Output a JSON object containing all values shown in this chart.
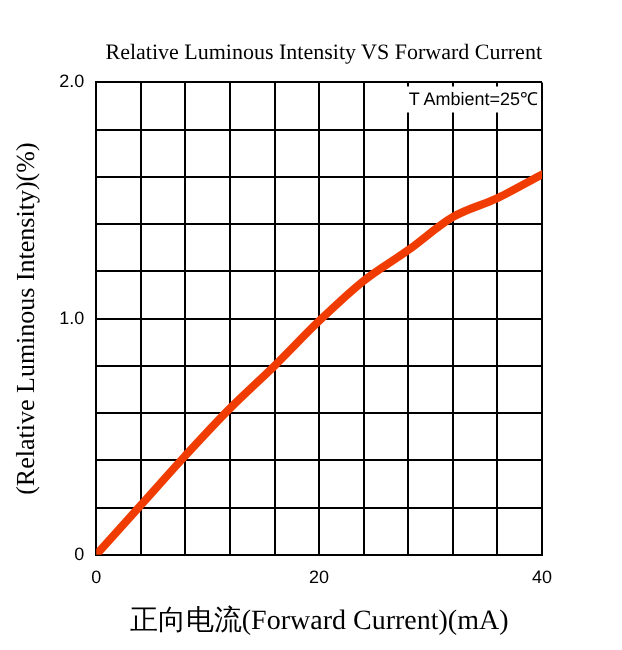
{
  "chart_data": {
    "type": "line",
    "title": "Relative Luminous Intensity VS Forward Current",
    "xlabel": "正向电流(Forward Current)(mA)",
    "ylabel": "(Relative Luminous Intensity)(%)",
    "x": [
      0,
      4,
      8,
      12,
      16,
      20,
      24,
      28,
      32,
      36,
      40
    ],
    "series": [
      {
        "color": "#f03c00",
        "values": [
          0,
          0.21,
          0.42,
          0.62,
          0.8,
          0.99,
          1.16,
          1.29,
          1.43,
          1.51,
          1.61
        ]
      }
    ],
    "xlim": [
      0,
      40
    ],
    "xticks": [
      0,
      {
        "value": 4,
        "label": null
      },
      {
        "value": 8,
        "label": null
      },
      {
        "value": 12,
        "label": null
      },
      {
        "value": 16,
        "label": null
      },
      20,
      {
        "value": 24,
        "label": null
      },
      {
        "value": 28,
        "label": null
      },
      {
        "value": 32,
        "label": null
      },
      {
        "value": 36,
        "label": null
      },
      40
    ],
    "ylim": [
      0,
      2
    ],
    "yticks": [
      0,
      {
        "value": 0.2,
        "label": null
      },
      {
        "value": 0.4,
        "label": null
      },
      {
        "value": 0.6,
        "label": null
      },
      {
        "value": 0.8,
        "label": null
      },
      {
        "value": 1,
        "label": "1.0"
      },
      {
        "value": 1.2,
        "label": null
      },
      {
        "value": 1.4,
        "label": null
      },
      {
        "value": 1.6,
        "label": null
      },
      {
        "value": 1.8,
        "label": null
      },
      {
        "value": 2,
        "label": "2.0"
      }
    ],
    "grid": true,
    "legend": false,
    "marker": "none",
    "line_style": "solid",
    "annotations": [
      "T Ambient=25℃"
    ]
  }
}
